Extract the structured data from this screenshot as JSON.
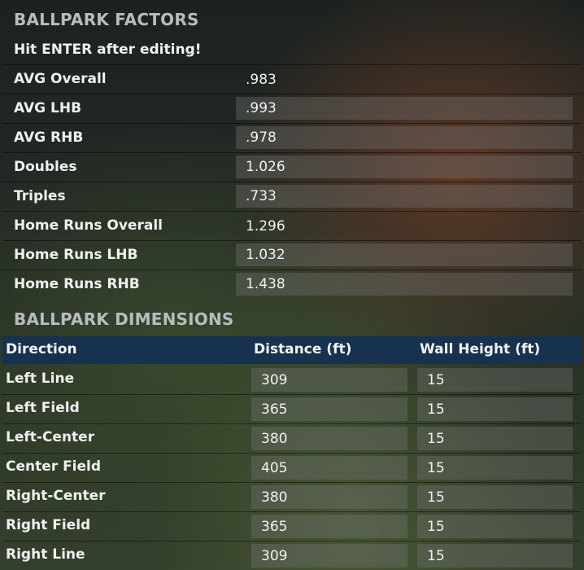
{
  "factors": {
    "title": "BALLPARK FACTORS",
    "hint": "Hit ENTER after editing!",
    "rows": [
      {
        "label": "AVG Overall",
        "value": ".983",
        "editable": false
      },
      {
        "label": "AVG LHB",
        "value": ".993",
        "editable": true
      },
      {
        "label": "AVG RHB",
        "value": ".978",
        "editable": true
      },
      {
        "label": "Doubles",
        "value": "1.026",
        "editable": true
      },
      {
        "label": "Triples",
        "value": ".733",
        "editable": true
      },
      {
        "label": "Home Runs Overall",
        "value": "1.296",
        "editable": false
      },
      {
        "label": "Home Runs LHB",
        "value": "1.032",
        "editable": true
      },
      {
        "label": "Home Runs RHB",
        "value": "1.438",
        "editable": true
      }
    ]
  },
  "dimensions": {
    "title": "BALLPARK DIMENSIONS",
    "columns": {
      "direction": "Direction",
      "distance": "Distance (ft)",
      "wall": "Wall Height (ft)"
    },
    "rows": [
      {
        "direction": "Left Line",
        "distance": "309",
        "wall": "15"
      },
      {
        "direction": "Left Field",
        "distance": "365",
        "wall": "15"
      },
      {
        "direction": "Left-Center",
        "distance": "380",
        "wall": "15"
      },
      {
        "direction": "Center Field",
        "distance": "405",
        "wall": "15"
      },
      {
        "direction": "Right-Center",
        "distance": "380",
        "wall": "15"
      },
      {
        "direction": "Right Field",
        "distance": "365",
        "wall": "15"
      },
      {
        "direction": "Right Line",
        "distance": "309",
        "wall": "15"
      }
    ]
  }
}
